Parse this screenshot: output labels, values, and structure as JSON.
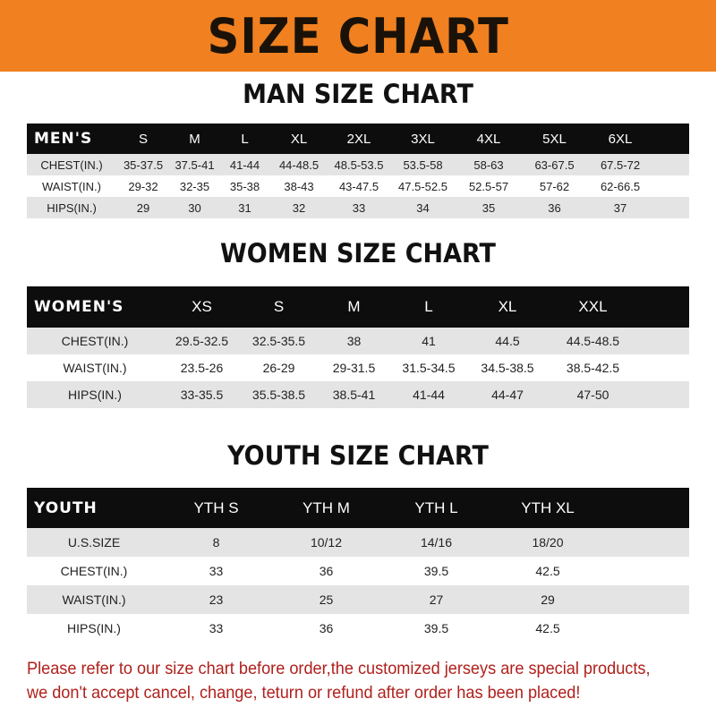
{
  "banner": "SIZE CHART",
  "men": {
    "title": "MAN SIZE CHART",
    "header": [
      "MEN'S",
      "S",
      "M",
      "L",
      "XL",
      "2XL",
      "3XL",
      "4XL",
      "5XL",
      "6XL"
    ],
    "rows": [
      [
        "CHEST(IN.)",
        "35-37.5",
        "37.5-41",
        "41-44",
        "44-48.5",
        "48.5-53.5",
        "53.5-58",
        "58-63",
        "63-67.5",
        "67.5-72"
      ],
      [
        "WAIST(IN.)",
        "29-32",
        "32-35",
        "35-38",
        "38-43",
        "43-47.5",
        "47.5-52.5",
        "52.5-57",
        "57-62",
        "62-66.5"
      ],
      [
        "HIPS(IN.)",
        "29",
        "30",
        "31",
        "32",
        "33",
        "34",
        "35",
        "36",
        "37"
      ]
    ]
  },
  "women": {
    "title": "WOMEN SIZE CHART",
    "header": [
      "WOMEN'S",
      "XS",
      "S",
      "M",
      "L",
      "XL",
      "XXL"
    ],
    "rows": [
      [
        "CHEST(IN.)",
        "29.5-32.5",
        "32.5-35.5",
        "38",
        "41",
        "44.5",
        "44.5-48.5"
      ],
      [
        "WAIST(IN.)",
        "23.5-26",
        "26-29",
        "29-31.5",
        "31.5-34.5",
        "34.5-38.5",
        "38.5-42.5"
      ],
      [
        "HIPS(IN.)",
        "33-35.5",
        "35.5-38.5",
        "38.5-41",
        "41-44",
        "44-47",
        "47-50"
      ]
    ]
  },
  "youth": {
    "title": "YOUTH SIZE CHART",
    "header": [
      "YOUTH",
      "YTH S",
      "YTH M",
      "YTH L",
      "YTH XL"
    ],
    "rows": [
      [
        "U.S.SIZE",
        "8",
        "10/12",
        "14/16",
        "18/20"
      ],
      [
        "CHEST(IN.)",
        "33",
        "36",
        "39.5",
        "42.5"
      ],
      [
        "WAIST(IN.)",
        "23",
        "25",
        "27",
        "29"
      ],
      [
        "HIPS(IN.)",
        "33",
        "36",
        "39.5",
        "42.5"
      ]
    ]
  },
  "note": [
    "Please refer to our size chart before order,the customized jerseys are special products,",
    "we don't accept cancel, change, teturn or refund after order has been placed!"
  ],
  "colors": {
    "banner": "#f08020",
    "header": "#0d0d0d",
    "stripe": "#e4e4e4",
    "note": "#b0201c"
  }
}
